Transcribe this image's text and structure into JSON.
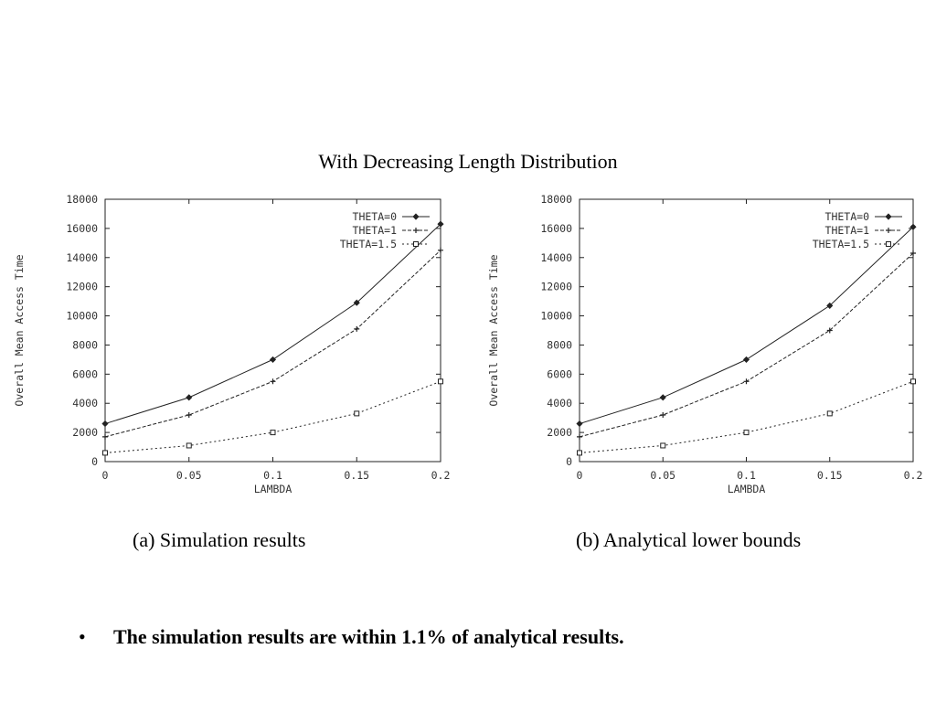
{
  "figure": {
    "title": "With Decreasing Length Distribution"
  },
  "charts": [
    {
      "caption": "(a) Simulation results"
    },
    {
      "caption": "(b) Analytical lower bounds"
    }
  ],
  "bullet": {
    "marker": "•",
    "text": "The simulation results are within 1.1% of analytical results."
  },
  "chart_data": [
    {
      "type": "line",
      "title": "",
      "xlabel": "LAMBDA",
      "ylabel": "Overall Mean Access Time",
      "x": [
        0,
        0.05,
        0.1,
        0.15,
        0.2
      ],
      "x_tick_labels": [
        "0",
        "0.05",
        "0.1",
        "0.15",
        "0.2"
      ],
      "y_tick_labels": [
        "0",
        "2000",
        "4000",
        "6000",
        "8000",
        "10000",
        "12000",
        "14000",
        "16000",
        "18000"
      ],
      "xlim": [
        0,
        0.2
      ],
      "ylim": [
        0,
        18000
      ],
      "grid": false,
      "legend_position": "top-right",
      "series": [
        {
          "name": "THETA=0",
          "marker": "diamond",
          "dash": "solid",
          "values": [
            2600,
            4400,
            7000,
            10900,
            16300
          ]
        },
        {
          "name": "THETA=1",
          "marker": "plus",
          "dash": "dashed",
          "values": [
            1700,
            3200,
            5500,
            9100,
            14500
          ]
        },
        {
          "name": "THETA=1.5",
          "marker": "square",
          "dash": "dotted",
          "values": [
            600,
            1100,
            2000,
            3300,
            5500
          ]
        }
      ]
    },
    {
      "type": "line",
      "title": "",
      "xlabel": "LAMBDA",
      "ylabel": "Overall Mean Access Time",
      "x": [
        0,
        0.05,
        0.1,
        0.15,
        0.2
      ],
      "x_tick_labels": [
        "0",
        "0.05",
        "0.1",
        "0.15",
        "0.2"
      ],
      "y_tick_labels": [
        "0",
        "2000",
        "4000",
        "6000",
        "8000",
        "10000",
        "12000",
        "14000",
        "16000",
        "18000"
      ],
      "xlim": [
        0,
        0.2
      ],
      "ylim": [
        0,
        18000
      ],
      "grid": false,
      "legend_position": "top-right",
      "series": [
        {
          "name": "THETA=0",
          "marker": "diamond",
          "dash": "solid",
          "values": [
            2600,
            4400,
            7000,
            10700,
            16100
          ]
        },
        {
          "name": "THETA=1",
          "marker": "plus",
          "dash": "dashed",
          "values": [
            1700,
            3200,
            5500,
            9000,
            14300
          ]
        },
        {
          "name": "THETA=1.5",
          "marker": "square",
          "dash": "dotted",
          "values": [
            600,
            1100,
            2000,
            3300,
            5500
          ]
        }
      ]
    }
  ]
}
